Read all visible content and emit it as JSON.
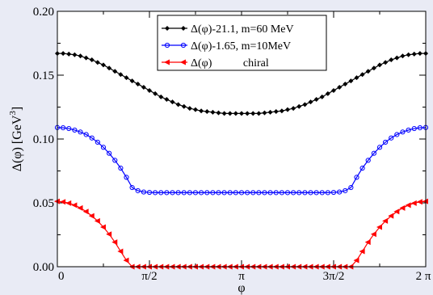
{
  "chart_data": {
    "type": "line",
    "xlabel": "φ",
    "ylabel": "Δ(φ)  [GeV",
    "ylabel_sup": "3",
    "ylabel_close": "]",
    "xlim": [
      0,
      6.283185
    ],
    "ylim": [
      0,
      0.2
    ],
    "x_ticks": [
      {
        "value": 0,
        "label": "0"
      },
      {
        "value": 1.570796,
        "label": "π/2"
      },
      {
        "value": 3.141593,
        "label": "π"
      },
      {
        "value": 4.712389,
        "label": "3π/2"
      },
      {
        "value": 6.283185,
        "label": "2 π"
      }
    ],
    "y_ticks": [
      {
        "value": 0,
        "label": "0.00"
      },
      {
        "value": 0.05,
        "label": "0.05"
      },
      {
        "value": 0.1,
        "label": "0.10"
      },
      {
        "value": 0.15,
        "label": "0.15"
      },
      {
        "value": 0.2,
        "label": "0.20"
      }
    ],
    "grid": false,
    "legend_position": "top-center",
    "series": [
      {
        "name": "Δ(φ)-21.1,  m=60 MeV",
        "color": "#000000",
        "marker": "diamond",
        "points": [
          [
            0,
            0.167
          ],
          [
            0.098,
            0.167
          ],
          [
            0.196,
            0.1665
          ],
          [
            0.295,
            0.166
          ],
          [
            0.393,
            0.165
          ],
          [
            0.491,
            0.1635
          ],
          [
            0.589,
            0.162
          ],
          [
            0.687,
            0.16
          ],
          [
            0.785,
            0.158
          ],
          [
            0.884,
            0.1555
          ],
          [
            0.982,
            0.153
          ],
          [
            1.08,
            0.1505
          ],
          [
            1.178,
            0.148
          ],
          [
            1.276,
            0.1455
          ],
          [
            1.374,
            0.143
          ],
          [
            1.473,
            0.1405
          ],
          [
            1.571,
            0.138
          ],
          [
            1.669,
            0.1355
          ],
          [
            1.767,
            0.133
          ],
          [
            1.865,
            0.131
          ],
          [
            1.963,
            0.129
          ],
          [
            2.062,
            0.127
          ],
          [
            2.16,
            0.1255
          ],
          [
            2.258,
            0.124
          ],
          [
            2.356,
            0.123
          ],
          [
            2.454,
            0.122
          ],
          [
            2.553,
            0.1215
          ],
          [
            2.651,
            0.121
          ],
          [
            2.749,
            0.1205
          ],
          [
            2.847,
            0.12
          ],
          [
            2.945,
            0.12
          ],
          [
            3.043,
            0.12
          ],
          [
            3.142,
            0.12
          ],
          [
            3.24,
            0.12
          ],
          [
            3.338,
            0.12
          ],
          [
            3.436,
            0.12
          ],
          [
            3.534,
            0.1205
          ],
          [
            3.632,
            0.121
          ],
          [
            3.731,
            0.1215
          ],
          [
            3.829,
            0.122
          ],
          [
            3.927,
            0.123
          ],
          [
            4.025,
            0.124
          ],
          [
            4.123,
            0.1255
          ],
          [
            4.222,
            0.127
          ],
          [
            4.32,
            0.129
          ],
          [
            4.418,
            0.131
          ],
          [
            4.516,
            0.133
          ],
          [
            4.614,
            0.1355
          ],
          [
            4.712,
            0.138
          ],
          [
            4.811,
            0.1405
          ],
          [
            4.909,
            0.143
          ],
          [
            5.007,
            0.1455
          ],
          [
            5.105,
            0.148
          ],
          [
            5.203,
            0.1505
          ],
          [
            5.301,
            0.153
          ],
          [
            5.4,
            0.1555
          ],
          [
            5.498,
            0.158
          ],
          [
            5.596,
            0.16
          ],
          [
            5.694,
            0.162
          ],
          [
            5.792,
            0.1635
          ],
          [
            5.89,
            0.165
          ],
          [
            5.989,
            0.166
          ],
          [
            6.087,
            0.1665
          ],
          [
            6.185,
            0.167
          ],
          [
            6.283,
            0.167
          ]
        ]
      },
      {
        "name": "Δ(φ)-1.65,  m=10MeV",
        "color": "#0000ff",
        "marker": "circle",
        "points": [
          [
            0,
            0.109
          ],
          [
            0.098,
            0.1088
          ],
          [
            0.196,
            0.1082
          ],
          [
            0.295,
            0.107
          ],
          [
            0.393,
            0.1055
          ],
          [
            0.491,
            0.1035
          ],
          [
            0.589,
            0.1008
          ],
          [
            0.687,
            0.0975
          ],
          [
            0.785,
            0.0935
          ],
          [
            0.884,
            0.0888
          ],
          [
            0.982,
            0.0833
          ],
          [
            1.08,
            0.0772
          ],
          [
            1.178,
            0.07
          ],
          [
            1.276,
            0.062
          ],
          [
            1.374,
            0.0595
          ],
          [
            1.473,
            0.0585
          ],
          [
            1.571,
            0.0582
          ],
          [
            1.669,
            0.058
          ],
          [
            1.767,
            0.058
          ],
          [
            1.865,
            0.058
          ],
          [
            1.963,
            0.058
          ],
          [
            2.062,
            0.058
          ],
          [
            2.16,
            0.058
          ],
          [
            2.258,
            0.058
          ],
          [
            2.356,
            0.058
          ],
          [
            2.454,
            0.058
          ],
          [
            2.553,
            0.058
          ],
          [
            2.651,
            0.058
          ],
          [
            2.749,
            0.058
          ],
          [
            2.847,
            0.058
          ],
          [
            2.945,
            0.058
          ],
          [
            3.043,
            0.058
          ],
          [
            3.142,
            0.058
          ],
          [
            3.24,
            0.058
          ],
          [
            3.338,
            0.058
          ],
          [
            3.436,
            0.058
          ],
          [
            3.534,
            0.058
          ],
          [
            3.632,
            0.058
          ],
          [
            3.731,
            0.058
          ],
          [
            3.829,
            0.058
          ],
          [
            3.927,
            0.058
          ],
          [
            4.025,
            0.058
          ],
          [
            4.123,
            0.058
          ],
          [
            4.222,
            0.058
          ],
          [
            4.32,
            0.058
          ],
          [
            4.418,
            0.058
          ],
          [
            4.516,
            0.058
          ],
          [
            4.614,
            0.058
          ],
          [
            4.712,
            0.0582
          ],
          [
            4.811,
            0.0585
          ],
          [
            4.909,
            0.0595
          ],
          [
            5.007,
            0.062
          ],
          [
            5.105,
            0.07
          ],
          [
            5.203,
            0.0772
          ],
          [
            5.301,
            0.0833
          ],
          [
            5.4,
            0.0888
          ],
          [
            5.498,
            0.0935
          ],
          [
            5.596,
            0.0975
          ],
          [
            5.694,
            0.1008
          ],
          [
            5.792,
            0.1035
          ],
          [
            5.89,
            0.1055
          ],
          [
            5.989,
            0.107
          ],
          [
            6.087,
            0.1082
          ],
          [
            6.185,
            0.1088
          ],
          [
            6.283,
            0.109
          ]
        ]
      },
      {
        "name": "Δ(φ)           chiral",
        "color": "#ff0000",
        "marker": "triangle-left",
        "points": [
          [
            0,
            0.0512
          ],
          [
            0.098,
            0.0508
          ],
          [
            0.196,
            0.0498
          ],
          [
            0.295,
            0.0482
          ],
          [
            0.393,
            0.046
          ],
          [
            0.491,
            0.0432
          ],
          [
            0.589,
            0.0398
          ],
          [
            0.687,
            0.0358
          ],
          [
            0.785,
            0.031
          ],
          [
            0.884,
            0.0255
          ],
          [
            0.982,
            0.0192
          ],
          [
            1.08,
            0.012
          ],
          [
            1.178,
            0.005
          ],
          [
            1.276,
            0
          ],
          [
            1.374,
            0
          ],
          [
            1.473,
            0
          ],
          [
            1.571,
            0
          ],
          [
            1.669,
            0
          ],
          [
            1.767,
            0
          ],
          [
            1.865,
            0
          ],
          [
            1.963,
            0
          ],
          [
            2.062,
            0
          ],
          [
            2.16,
            0
          ],
          [
            2.258,
            0
          ],
          [
            2.356,
            0
          ],
          [
            2.454,
            0
          ],
          [
            2.553,
            0
          ],
          [
            2.651,
            0
          ],
          [
            2.749,
            0
          ],
          [
            2.847,
            0
          ],
          [
            2.945,
            0
          ],
          [
            3.043,
            0
          ],
          [
            3.142,
            0
          ],
          [
            3.24,
            0
          ],
          [
            3.338,
            0
          ],
          [
            3.436,
            0
          ],
          [
            3.534,
            0
          ],
          [
            3.632,
            0
          ],
          [
            3.731,
            0
          ],
          [
            3.829,
            0
          ],
          [
            3.927,
            0
          ],
          [
            4.025,
            0
          ],
          [
            4.123,
            0
          ],
          [
            4.222,
            0
          ],
          [
            4.32,
            0
          ],
          [
            4.418,
            0
          ],
          [
            4.516,
            0
          ],
          [
            4.614,
            0
          ],
          [
            4.712,
            0
          ],
          [
            4.811,
            0
          ],
          [
            4.909,
            0
          ],
          [
            5.007,
            0
          ],
          [
            5.105,
            0.005
          ],
          [
            5.203,
            0.012
          ],
          [
            5.301,
            0.0192
          ],
          [
            5.4,
            0.0255
          ],
          [
            5.498,
            0.031
          ],
          [
            5.596,
            0.0358
          ],
          [
            5.694,
            0.0398
          ],
          [
            5.792,
            0.0432
          ],
          [
            5.89,
            0.046
          ],
          [
            5.989,
            0.0482
          ],
          [
            6.087,
            0.0498
          ],
          [
            6.185,
            0.0508
          ],
          [
            6.283,
            0.0512
          ]
        ]
      }
    ]
  }
}
